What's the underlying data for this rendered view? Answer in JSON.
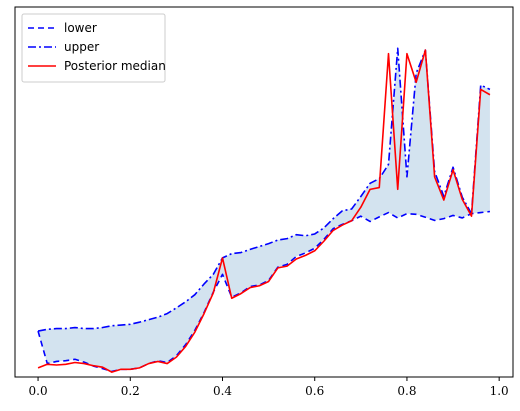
{
  "chart_data": {
    "type": "line",
    "title": "",
    "xlabel": "",
    "ylabel": "",
    "xlim": [
      -0.05,
      1.03
    ],
    "ylim": [
      0,
      1
    ],
    "xticks": [
      0.0,
      0.2,
      0.4,
      0.6,
      0.8,
      1.0
    ],
    "xtick_labels": [
      "0.0",
      "0.2",
      "0.4",
      "0.6",
      "0.8",
      "1.0"
    ],
    "yticks_visible": false,
    "grid": false,
    "legend": "top-left",
    "x": [
      0.0,
      0.02,
      0.04,
      0.06,
      0.08,
      0.1,
      0.12,
      0.14,
      0.16,
      0.18,
      0.2,
      0.22,
      0.24,
      0.26,
      0.28,
      0.3,
      0.32,
      0.34,
      0.36,
      0.38,
      0.4,
      0.42,
      0.44,
      0.46,
      0.48,
      0.5,
      0.52,
      0.54,
      0.56,
      0.58,
      0.6,
      0.62,
      0.64,
      0.66,
      0.68,
      0.7,
      0.72,
      0.74,
      0.76,
      0.78,
      0.8,
      0.82,
      0.84,
      0.86,
      0.88,
      0.9,
      0.92,
      0.94,
      0.96,
      0.98
    ],
    "band_fill": "#d3e3ef",
    "series": [
      {
        "name": "lower",
        "style": "dashed",
        "color": "#0000ff",
        "values": [
          0.123,
          0.032,
          0.038,
          0.04,
          0.044,
          0.036,
          0.025,
          0.018,
          0.01,
          0.016,
          0.016,
          0.02,
          0.032,
          0.04,
          0.035,
          0.054,
          0.085,
          0.125,
          0.175,
          0.232,
          0.282,
          0.218,
          0.23,
          0.248,
          0.252,
          0.265,
          0.302,
          0.31,
          0.332,
          0.342,
          0.355,
          0.38,
          0.41,
          0.422,
          0.432,
          0.445,
          0.43,
          0.443,
          0.455,
          0.44,
          0.452,
          0.45,
          0.442,
          0.433,
          0.438,
          0.447,
          0.44,
          0.452,
          0.455,
          0.458
        ]
      },
      {
        "name": "upper",
        "style": "dashdot",
        "color": "#0000ff",
        "values": [
          0.123,
          0.128,
          0.13,
          0.13,
          0.133,
          0.13,
          0.13,
          0.133,
          0.138,
          0.14,
          0.142,
          0.148,
          0.155,
          0.162,
          0.172,
          0.188,
          0.205,
          0.225,
          0.255,
          0.282,
          0.328,
          0.34,
          0.343,
          0.352,
          0.36,
          0.368,
          0.378,
          0.382,
          0.393,
          0.39,
          0.395,
          0.412,
          0.438,
          0.46,
          0.465,
          0.5,
          0.537,
          0.55,
          0.59,
          0.915,
          0.555,
          0.845,
          0.91,
          0.57,
          0.5,
          0.582,
          0.498,
          0.452,
          0.812,
          0.8
        ]
      },
      {
        "name": "Posterior median",
        "style": "solid",
        "color": "#ff0000",
        "values": [
          0.02,
          0.03,
          0.028,
          0.03,
          0.035,
          0.032,
          0.026,
          0.022,
          0.008,
          0.016,
          0.016,
          0.02,
          0.032,
          0.038,
          0.032,
          0.05,
          0.08,
          0.12,
          0.172,
          0.23,
          0.328,
          0.215,
          0.228,
          0.245,
          0.25,
          0.262,
          0.3,
          0.305,
          0.325,
          0.335,
          0.348,
          0.375,
          0.405,
          0.42,
          0.432,
          0.47,
          0.52,
          0.525,
          0.9,
          0.52,
          0.9,
          0.82,
          0.91,
          0.555,
          0.49,
          0.575,
          0.492,
          0.445,
          0.8,
          0.785
        ]
      }
    ]
  }
}
